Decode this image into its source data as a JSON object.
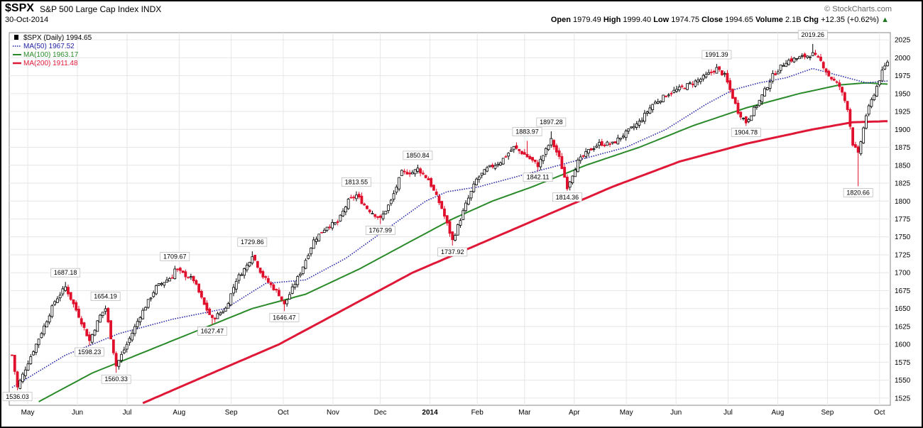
{
  "header": {
    "symbol": "$SPX",
    "name": "S&P 500 Large Cap Index",
    "exchange": "INDX",
    "date": "30-Oct-2014",
    "brand": "© StockCharts.com",
    "ohlc": {
      "open_label": "Open",
      "open": "1979.49",
      "high_label": "High",
      "high": "1999.40",
      "low_label": "Low",
      "low": "1974.75",
      "close_label": "Close",
      "close": "1994.65",
      "volume_label": "Volume",
      "volume": "2.1B",
      "chg_label": "Chg",
      "chg": "+12.35 (+0.62%)",
      "chg_arrow": "▲"
    }
  },
  "colors": {
    "up_candle": "#000000",
    "down_candle": "#e0102c",
    "ma50": "#2424a8",
    "ma100": "#2a8a2a",
    "ma200": "#e01838",
    "grid": "#e6e6e6"
  },
  "chart_data": {
    "type": "line",
    "title": "$SPX S&P 500 Large Cap Index INDX",
    "price_range": [
      1515,
      2035
    ],
    "y_ticks": [
      1525,
      1550,
      1575,
      1600,
      1625,
      1650,
      1675,
      1700,
      1725,
      1750,
      1775,
      1800,
      1825,
      1850,
      1875,
      1900,
      1925,
      1950,
      1975,
      2000,
      2025
    ],
    "y_axis_side": "right",
    "grid": true,
    "legend_placement": "top-left",
    "x_labels": [
      "May",
      "Jun",
      "Jul",
      "Aug",
      "Sep",
      "Oct",
      "Nov",
      "Dec",
      "2014",
      "Feb",
      "Mar",
      "Apr",
      "May",
      "Jun",
      "Jul",
      "Aug",
      "Sep",
      "Oct"
    ],
    "x_label_bold_index": 8,
    "legend": [
      {
        "label": "$SPX (Daily) 1994.65",
        "style": "candle"
      },
      {
        "label": "MA(50) 1967.52",
        "style": "dotted",
        "color_key": "ma50"
      },
      {
        "label": "MA(100) 1963.17",
        "style": "solid",
        "color_key": "ma100"
      },
      {
        "label": "MA(200) 1911.48",
        "style": "thick",
        "color_key": "ma200"
      }
    ],
    "annotations": [
      {
        "label": "1536.03",
        "day": 2,
        "value": 1536.03,
        "pos": "below"
      },
      {
        "label": "1687.18",
        "day": 20,
        "value": 1687.18,
        "pos": "above"
      },
      {
        "label": "1598.23",
        "day": 29,
        "value": 1598.23,
        "pos": "below"
      },
      {
        "label": "1654.19",
        "day": 35,
        "value": 1654.19,
        "pos": "above"
      },
      {
        "label": "1560.33",
        "day": 39,
        "value": 1560.33,
        "pos": "below"
      },
      {
        "label": "1709.67",
        "day": 61,
        "value": 1709.67,
        "pos": "above"
      },
      {
        "label": "1627.47",
        "day": 75,
        "value": 1627.47,
        "pos": "below"
      },
      {
        "label": "1729.86",
        "day": 90,
        "value": 1729.86,
        "pos": "above"
      },
      {
        "label": "1646.47",
        "day": 102,
        "value": 1646.47,
        "pos": "below"
      },
      {
        "label": "1813.55",
        "day": 129,
        "value": 1813.55,
        "pos": "above"
      },
      {
        "label": "1767.99",
        "day": 138,
        "value": 1767.99,
        "pos": "below"
      },
      {
        "label": "1850.84",
        "day": 152,
        "value": 1850.84,
        "pos": "above"
      },
      {
        "label": "1737.92",
        "day": 165,
        "value": 1737.92,
        "pos": "below"
      },
      {
        "label": "1883.97",
        "day": 193,
        "value": 1883.97,
        "pos": "above"
      },
      {
        "label": "1842.11",
        "day": 197,
        "value": 1842.11,
        "pos": "below"
      },
      {
        "label": "1897.28",
        "day": 202,
        "value": 1897.28,
        "pos": "above"
      },
      {
        "label": "1814.36",
        "day": 208,
        "value": 1814.36,
        "pos": "below"
      },
      {
        "label": "1991.39",
        "day": 264,
        "value": 1991.39,
        "pos": "above"
      },
      {
        "label": "1904.78",
        "day": 275,
        "value": 1904.78,
        "pos": "below"
      },
      {
        "label": "2019.26",
        "day": 300,
        "value": 2019.26,
        "pos": "above"
      },
      {
        "label": "1820.66",
        "day": 317,
        "value": 1820.66,
        "pos": "below"
      }
    ],
    "close_anchors": [
      [
        0,
        1585
      ],
      [
        2,
        1540
      ],
      [
        6,
        1575
      ],
      [
        12,
        1625
      ],
      [
        16,
        1660
      ],
      [
        20,
        1680
      ],
      [
        25,
        1640
      ],
      [
        29,
        1605
      ],
      [
        33,
        1640
      ],
      [
        35,
        1650
      ],
      [
        39,
        1570
      ],
      [
        43,
        1600
      ],
      [
        48,
        1640
      ],
      [
        54,
        1680
      ],
      [
        60,
        1695
      ],
      [
        61,
        1705
      ],
      [
        68,
        1690
      ],
      [
        72,
        1655
      ],
      [
        75,
        1635
      ],
      [
        80,
        1650
      ],
      [
        84,
        1690
      ],
      [
        88,
        1710
      ],
      [
        90,
        1725
      ],
      [
        94,
        1695
      ],
      [
        100,
        1670
      ],
      [
        102,
        1655
      ],
      [
        108,
        1700
      ],
      [
        113,
        1745
      ],
      [
        118,
        1765
      ],
      [
        122,
        1770
      ],
      [
        126,
        1800
      ],
      [
        129,
        1808
      ],
      [
        133,
        1790
      ],
      [
        138,
        1775
      ],
      [
        142,
        1800
      ],
      [
        146,
        1840
      ],
      [
        150,
        1840
      ],
      [
        152,
        1845
      ],
      [
        156,
        1830
      ],
      [
        161,
        1790
      ],
      [
        165,
        1745
      ],
      [
        170,
        1795
      ],
      [
        174,
        1830
      ],
      [
        178,
        1845
      ],
      [
        183,
        1855
      ],
      [
        188,
        1875
      ],
      [
        192,
        1865
      ],
      [
        197,
        1850
      ],
      [
        202,
        1885
      ],
      [
        205,
        1860
      ],
      [
        208,
        1820
      ],
      [
        212,
        1855
      ],
      [
        216,
        1870
      ],
      [
        220,
        1880
      ],
      [
        225,
        1880
      ],
      [
        230,
        1895
      ],
      [
        235,
        1910
      ],
      [
        240,
        1935
      ],
      [
        246,
        1950
      ],
      [
        252,
        1960
      ],
      [
        258,
        1970
      ],
      [
        264,
        1985
      ],
      [
        267,
        1975
      ],
      [
        272,
        1925
      ],
      [
        275,
        1910
      ],
      [
        280,
        1940
      ],
      [
        285,
        1975
      ],
      [
        290,
        1995
      ],
      [
        295,
        2000
      ],
      [
        300,
        2005
      ],
      [
        303,
        1995
      ],
      [
        306,
        1975
      ],
      [
        310,
        1960
      ],
      [
        313,
        1930
      ],
      [
        315,
        1880
      ],
      [
        317,
        1865
      ],
      [
        320,
        1920
      ],
      [
        323,
        1950
      ],
      [
        326,
        1980
      ],
      [
        328,
        1994.65
      ]
    ],
    "ma_anchors": {
      "ma50": [
        [
          0,
          1540
        ],
        [
          20,
          1585
        ],
        [
          40,
          1615
        ],
        [
          60,
          1635
        ],
        [
          80,
          1650
        ],
        [
          95,
          1685
        ],
        [
          110,
          1690
        ],
        [
          125,
          1720
        ],
        [
          140,
          1760
        ],
        [
          155,
          1800
        ],
        [
          163,
          1813
        ],
        [
          175,
          1820
        ],
        [
          190,
          1835
        ],
        [
          200,
          1845
        ],
        [
          215,
          1860
        ],
        [
          230,
          1875
        ],
        [
          245,
          1900
        ],
        [
          260,
          1935
        ],
        [
          270,
          1955
        ],
        [
          280,
          1965
        ],
        [
          290,
          1972
        ],
        [
          300,
          1985
        ],
        [
          310,
          1975
        ],
        [
          320,
          1965
        ],
        [
          328,
          1967.52
        ]
      ],
      "ma100": [
        [
          10,
          1520
        ],
        [
          30,
          1560
        ],
        [
          50,
          1590
        ],
        [
          70,
          1620
        ],
        [
          90,
          1650
        ],
        [
          110,
          1670
        ],
        [
          130,
          1705
        ],
        [
          150,
          1745
        ],
        [
          165,
          1775
        ],
        [
          180,
          1800
        ],
        [
          195,
          1820
        ],
        [
          215,
          1850
        ],
        [
          235,
          1875
        ],
        [
          255,
          1905
        ],
        [
          275,
          1930
        ],
        [
          295,
          1950
        ],
        [
          310,
          1962
        ],
        [
          320,
          1965
        ],
        [
          328,
          1963.17
        ]
      ],
      "ma200": [
        [
          49,
          1518
        ],
        [
          75,
          1560
        ],
        [
          100,
          1600
        ],
        [
          125,
          1650
        ],
        [
          150,
          1700
        ],
        [
          175,
          1740
        ],
        [
          200,
          1780
        ],
        [
          225,
          1820
        ],
        [
          250,
          1855
        ],
        [
          275,
          1880
        ],
        [
          300,
          1900
        ],
        [
          315,
          1910
        ],
        [
          328,
          1911.48
        ]
      ]
    },
    "ma_start_day": {
      "ma50": 0,
      "ma100": 10,
      "ma200": 49
    }
  }
}
